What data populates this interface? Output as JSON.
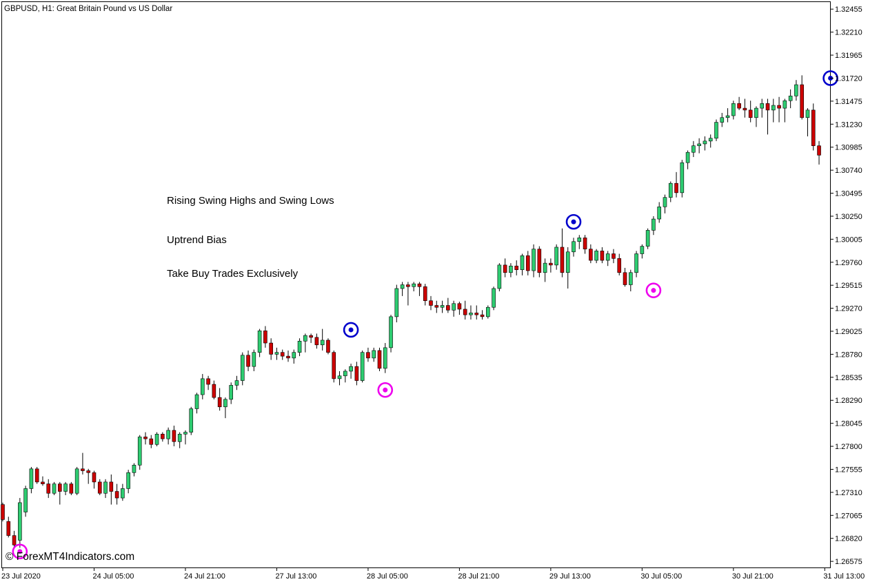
{
  "header": {
    "symbol_line": "GBPUSD, H1:  Great Britain Pound vs US Dollar"
  },
  "annotations": [
    "Rising Swing Highs and Swing Lows",
    "Uptrend Bias",
    "Take Buy Trades Exclusively"
  ],
  "watermark": "© ForexMT4Indicators.com",
  "colors": {
    "bull": "#2ecc71",
    "bear": "#cc0000",
    "wick": "#000000",
    "swing_high": "#0000cc",
    "swing_low": "#ee00ee",
    "axis": "#000000",
    "background": "#ffffff"
  },
  "chart_data": {
    "type": "candlestick",
    "title": "GBPUSD, H1:  Great Britain Pound vs US Dollar",
    "y_ticks": [
      "1.32455",
      "1.32210",
      "1.31965",
      "1.31720",
      "1.31475",
      "1.31230",
      "1.30985",
      "1.30740",
      "1.30495",
      "1.30250",
      "1.30005",
      "1.29760",
      "1.29515",
      "1.29270",
      "1.29025",
      "1.28780",
      "1.28535",
      "1.28290",
      "1.28045",
      "1.27800",
      "1.27555",
      "1.27310",
      "1.27065",
      "1.26820",
      "1.26575"
    ],
    "ylim": [
      1.2651,
      1.3253
    ],
    "x_ticks": [
      "23 Jul 2020",
      "24 Jul 05:00",
      "24 Jul 21:00",
      "27 Jul 13:00",
      "28 Jul 05:00",
      "28 Jul 21:00",
      "29 Jul 13:00",
      "30 Jul 05:00",
      "30 Jul 21:00",
      "31 Jul 13:00"
    ],
    "x_tick_index": [
      0,
      16,
      32,
      48,
      64,
      80,
      96,
      112,
      128,
      144
    ],
    "candles": [
      [
        1.2718,
        1.272,
        1.27,
        1.2702
      ],
      [
        1.27,
        1.2705,
        1.2683,
        1.2685
      ],
      [
        1.2685,
        1.269,
        1.2672,
        1.2675
      ],
      [
        1.268,
        1.2725,
        1.2672,
        1.272
      ],
      [
        1.271,
        1.2738,
        1.2705,
        1.2735
      ],
      [
        1.2735,
        1.2758,
        1.273,
        1.2756
      ],
      [
        1.2756,
        1.2758,
        1.274,
        1.2742
      ],
      [
        1.2742,
        1.2748,
        1.2738,
        1.274
      ],
      [
        1.274,
        1.2745,
        1.2725,
        1.273
      ],
      [
        1.273,
        1.2742,
        1.2728,
        1.274
      ],
      [
        1.274,
        1.2742,
        1.2718,
        1.2732
      ],
      [
        1.2732,
        1.2742,
        1.2728,
        1.274
      ],
      [
        1.274,
        1.2742,
        1.2728,
        1.273
      ],
      [
        1.273,
        1.2758,
        1.2728,
        1.2756
      ],
      [
        1.2756,
        1.2773,
        1.275,
        1.2754
      ],
      [
        1.2754,
        1.2756,
        1.274,
        1.2752
      ],
      [
        1.2752,
        1.2754,
        1.2735,
        1.2742
      ],
      [
        1.2742,
        1.2745,
        1.2728,
        1.273
      ],
      [
        1.273,
        1.2745,
        1.2725,
        1.2742
      ],
      [
        1.2742,
        1.275,
        1.2718,
        1.2732
      ],
      [
        1.2732,
        1.274,
        1.2718,
        1.2725
      ],
      [
        1.2725,
        1.274,
        1.2722,
        1.2735
      ],
      [
        1.2735,
        1.2755,
        1.273,
        1.2752
      ],
      [
        1.2752,
        1.2762,
        1.2748,
        1.276
      ],
      [
        1.276,
        1.2792,
        1.2755,
        1.279
      ],
      [
        1.279,
        1.2795,
        1.2782,
        1.2788
      ],
      [
        1.2788,
        1.2792,
        1.2778,
        1.2782
      ],
      [
        1.2782,
        1.2795,
        1.278,
        1.2793
      ],
      [
        1.2793,
        1.2795,
        1.2785,
        1.2788
      ],
      [
        1.2788,
        1.28,
        1.2782,
        1.2797
      ],
      [
        1.2797,
        1.2802,
        1.278,
        1.2785
      ],
      [
        1.2785,
        1.2795,
        1.2778,
        1.2793
      ],
      [
        1.2793,
        1.2797,
        1.2782,
        1.2795
      ],
      [
        1.2795,
        1.2822,
        1.2792,
        1.282
      ],
      [
        1.282,
        1.2837,
        1.2815,
        1.2835
      ],
      [
        1.2835,
        1.2857,
        1.283,
        1.2852
      ],
      [
        1.2852,
        1.2855,
        1.284,
        1.2846
      ],
      [
        1.2846,
        1.285,
        1.283,
        1.2832
      ],
      [
        1.2832,
        1.2842,
        1.2818,
        1.2822
      ],
      [
        1.2822,
        1.2832,
        1.281,
        1.283
      ],
      [
        1.283,
        1.2848,
        1.2825,
        1.2845
      ],
      [
        1.2845,
        1.2855,
        1.284,
        1.285
      ],
      [
        1.285,
        1.288,
        1.2845,
        1.2877
      ],
      [
        1.2877,
        1.2882,
        1.286,
        1.2865
      ],
      [
        1.2865,
        1.2883,
        1.286,
        1.288
      ],
      [
        1.288,
        1.2905,
        1.2875,
        1.2903
      ],
      [
        1.2903,
        1.2908,
        1.2885,
        1.289
      ],
      [
        1.289,
        1.2895,
        1.2872,
        1.2878
      ],
      [
        1.2878,
        1.2885,
        1.2872,
        1.288
      ],
      [
        1.288,
        1.2883,
        1.2872,
        1.2876
      ],
      [
        1.2876,
        1.2882,
        1.287,
        1.2874
      ],
      [
        1.2874,
        1.2883,
        1.2868,
        1.288
      ],
      [
        1.288,
        1.2895,
        1.2876,
        1.2892
      ],
      [
        1.2892,
        1.29,
        1.288,
        1.2898
      ],
      [
        1.2898,
        1.29,
        1.289,
        1.2896
      ],
      [
        1.2896,
        1.29,
        1.2884,
        1.2888
      ],
      [
        1.2888,
        1.2905,
        1.2882,
        1.2893
      ],
      [
        1.2893,
        1.2895,
        1.2878,
        1.288
      ],
      [
        1.288,
        1.2882,
        1.2848,
        1.2852
      ],
      [
        1.2852,
        1.286,
        1.2845,
        1.2855
      ],
      [
        1.2855,
        1.2862,
        1.2848,
        1.286
      ],
      [
        1.286,
        1.2868,
        1.2852,
        1.2865
      ],
      [
        1.2865,
        1.287,
        1.2845,
        1.285
      ],
      [
        1.285,
        1.2882,
        1.2848,
        1.288
      ],
      [
        1.288,
        1.2885,
        1.287,
        1.2874
      ],
      [
        1.2874,
        1.2885,
        1.287,
        1.2882
      ],
      [
        1.2882,
        1.2885,
        1.286,
        1.2863
      ],
      [
        1.2863,
        1.289,
        1.2858,
        1.2885
      ],
      [
        1.2885,
        1.292,
        1.288,
        1.2918
      ],
      [
        1.2918,
        1.2952,
        1.2912,
        1.2948
      ],
      [
        1.2948,
        1.2955,
        1.294,
        1.2952
      ],
      [
        1.2952,
        1.2955,
        1.293,
        1.295
      ],
      [
        1.295,
        1.2955,
        1.2945,
        1.2953
      ],
      [
        1.2953,
        1.2955,
        1.294,
        1.295
      ],
      [
        1.295,
        1.2953,
        1.293,
        1.2935
      ],
      [
        1.2935,
        1.294,
        1.2925,
        1.293
      ],
      [
        1.293,
        1.2935,
        1.2922,
        1.2928
      ],
      [
        1.2928,
        1.2935,
        1.2922,
        1.293
      ],
      [
        1.293,
        1.2938,
        1.2922,
        1.2925
      ],
      [
        1.2925,
        1.2935,
        1.2918,
        1.2932
      ],
      [
        1.2932,
        1.2934,
        1.292,
        1.2926
      ],
      [
        1.2926,
        1.2935,
        1.2915,
        1.292
      ],
      [
        1.292,
        1.293,
        1.2915,
        1.2922
      ],
      [
        1.2922,
        1.293,
        1.2915,
        1.292
      ],
      [
        1.292,
        1.2925,
        1.2915,
        1.2918
      ],
      [
        1.2918,
        1.293,
        1.2916,
        1.2928
      ],
      [
        1.2928,
        1.295,
        1.2925,
        1.2948
      ],
      [
        1.2948,
        1.2975,
        1.2945,
        1.2973
      ],
      [
        1.2973,
        1.298,
        1.296,
        1.2965
      ],
      [
        1.2965,
        1.2975,
        1.296,
        1.2972
      ],
      [
        1.2972,
        1.2978,
        1.2962,
        1.2968
      ],
      [
        1.2968,
        1.2985,
        1.2962,
        1.2983
      ],
      [
        1.2983,
        1.2988,
        1.2962,
        1.2967
      ],
      [
        1.2967,
        1.2995,
        1.296,
        1.299
      ],
      [
        1.299,
        1.2993,
        1.296,
        1.2965
      ],
      [
        1.2965,
        1.298,
        1.2955,
        1.2975
      ],
      [
        1.2975,
        1.298,
        1.2965,
        1.2973
      ],
      [
        1.2973,
        1.2995,
        1.2968,
        1.2992
      ],
      [
        1.2992,
        1.3012,
        1.296,
        1.2965
      ],
      [
        1.2965,
        1.2992,
        1.2948,
        1.2987
      ],
      [
        1.2987,
        1.3002,
        1.2982,
        1.2998
      ],
      [
        1.2998,
        1.3005,
        1.299,
        1.3002
      ],
      [
        1.3002,
        1.3005,
        1.2985,
        1.299
      ],
      [
        1.299,
        1.2995,
        1.2975,
        1.2978
      ],
      [
        1.2978,
        1.299,
        1.2975,
        1.2988
      ],
      [
        1.2988,
        1.2992,
        1.2975,
        1.2978
      ],
      [
        1.2978,
        1.2988,
        1.2972,
        1.2985
      ],
      [
        1.2985,
        1.299,
        1.2975,
        1.298
      ],
      [
        1.298,
        1.2985,
        1.2962,
        1.2965
      ],
      [
        1.2965,
        1.297,
        1.295,
        1.2952
      ],
      [
        1.2952,
        1.2968,
        1.2945,
        1.2965
      ],
      [
        1.2965,
        1.2988,
        1.296,
        1.2985
      ],
      [
        1.2985,
        1.2995,
        1.298,
        1.2993
      ],
      [
        1.2993,
        1.3012,
        1.299,
        1.301
      ],
      [
        1.301,
        1.3025,
        1.3005,
        1.3022
      ],
      [
        1.3022,
        1.304,
        1.3018,
        1.3035
      ],
      [
        1.3035,
        1.3048,
        1.3028,
        1.3045
      ],
      [
        1.3045,
        1.3062,
        1.304,
        1.306
      ],
      [
        1.306,
        1.3072,
        1.3045,
        1.305
      ],
      [
        1.305,
        1.3085,
        1.3045,
        1.3082
      ],
      [
        1.3082,
        1.3095,
        1.3075,
        1.3093
      ],
      [
        1.3093,
        1.3105,
        1.3088,
        1.31
      ],
      [
        1.31,
        1.3108,
        1.3092,
        1.3102
      ],
      [
        1.3102,
        1.311,
        1.3095,
        1.3105
      ],
      [
        1.3105,
        1.3112,
        1.3098,
        1.3108
      ],
      [
        1.3108,
        1.3128,
        1.3105,
        1.3125
      ],
      [
        1.3125,
        1.3135,
        1.312,
        1.313
      ],
      [
        1.313,
        1.314,
        1.3125,
        1.3132
      ],
      [
        1.3132,
        1.3148,
        1.3128,
        1.3145
      ],
      [
        1.3145,
        1.3152,
        1.3138,
        1.314
      ],
      [
        1.314,
        1.315,
        1.313,
        1.3138
      ],
      [
        1.3138,
        1.3148,
        1.3125,
        1.313
      ],
      [
        1.313,
        1.3142,
        1.312,
        1.314
      ],
      [
        1.314,
        1.315,
        1.313,
        1.3145
      ],
      [
        1.3145,
        1.315,
        1.3112,
        1.3138
      ],
      [
        1.3138,
        1.315,
        1.3125,
        1.3143
      ],
      [
        1.3143,
        1.3152,
        1.3125,
        1.314
      ],
      [
        1.314,
        1.315,
        1.3125,
        1.3148
      ],
      [
        1.3148,
        1.316,
        1.314,
        1.3153
      ],
      [
        1.3153,
        1.317,
        1.3148,
        1.3165
      ],
      [
        1.3165,
        1.3175,
        1.3128,
        1.313
      ],
      [
        1.313,
        1.314,
        1.311,
        1.3138
      ],
      [
        1.3138,
        1.3145,
        1.3095,
        1.31
      ],
      [
        1.31,
        1.3105,
        1.308,
        1.309
      ]
    ],
    "swing_highs": [
      [
        61,
        1.2904
      ],
      [
        100,
        1.3019
      ],
      [
        145,
        1.3172
      ]
    ],
    "swing_lows": [
      [
        3,
        1.2668
      ],
      [
        67,
        1.284
      ],
      [
        114,
        1.2946
      ]
    ]
  }
}
